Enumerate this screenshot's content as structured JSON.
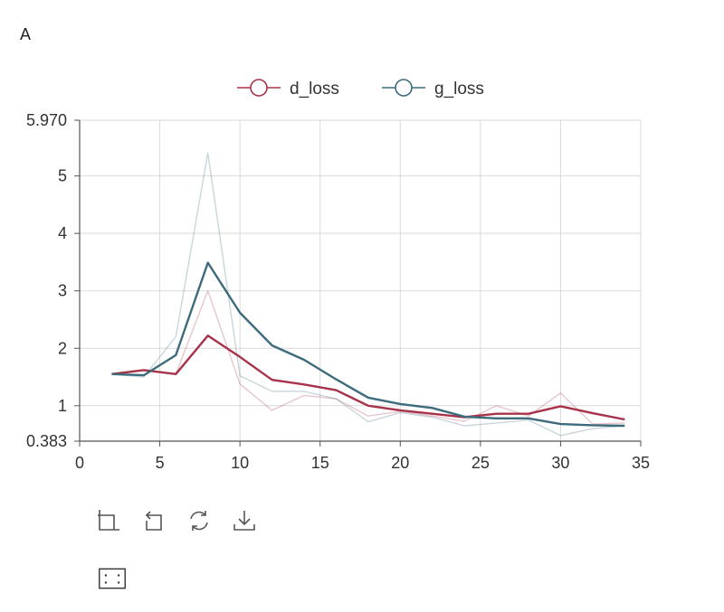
{
  "panel_label": "A",
  "toolbar": {
    "icons": [
      "zoom-area-icon",
      "zoom-reset-icon",
      "restore-icon",
      "download-icon",
      "brush-select-icon"
    ]
  },
  "chart_data": {
    "type": "line",
    "title": "",
    "xlabel": "",
    "ylabel": "",
    "xlim": [
      0,
      35
    ],
    "ylim": [
      0.383,
      5.97
    ],
    "x_ticks": [
      0,
      5,
      10,
      15,
      20,
      25,
      30,
      35
    ],
    "y_ticks": [
      {
        "value": 0.383,
        "label": "0.383"
      },
      {
        "value": 1,
        "label": "1"
      },
      {
        "value": 2,
        "label": "2"
      },
      {
        "value": 3,
        "label": "3"
      },
      {
        "value": 4,
        "label": "4"
      },
      {
        "value": 5,
        "label": "5"
      },
      {
        "value": 5.97,
        "label": "5.970"
      }
    ],
    "grid": true,
    "legend_position": "top-center",
    "series": [
      {
        "name": "d_loss",
        "color": "#a8324a",
        "x": [
          2,
          4,
          6,
          8,
          10,
          12,
          14,
          16,
          18,
          20,
          22,
          24,
          26,
          28,
          30,
          32,
          34
        ],
        "smoothed": [
          1.55,
          1.62,
          1.55,
          2.22,
          1.85,
          1.45,
          1.37,
          1.27,
          1.0,
          0.92,
          0.86,
          0.8,
          0.86,
          0.86,
          0.99,
          0.87,
          0.76
        ],
        "raw": [
          1.55,
          1.62,
          1.55,
          3.0,
          1.38,
          0.92,
          1.18,
          1.12,
          0.82,
          0.9,
          0.82,
          0.73,
          1.0,
          0.82,
          1.22,
          0.68,
          0.7
        ]
      },
      {
        "name": "g_loss",
        "color": "#3d6b7c",
        "x": [
          2,
          4,
          6,
          8,
          10,
          12,
          14,
          16,
          18,
          20,
          22,
          24,
          26,
          28,
          30,
          32,
          34
        ],
        "smoothed": [
          1.55,
          1.53,
          1.88,
          3.49,
          2.62,
          2.05,
          1.8,
          1.46,
          1.14,
          1.03,
          0.96,
          0.81,
          0.78,
          0.78,
          0.68,
          0.66,
          0.65
        ],
        "raw": [
          1.55,
          1.5,
          2.2,
          5.4,
          1.52,
          1.25,
          1.25,
          1.12,
          0.72,
          0.88,
          0.8,
          0.65,
          0.7,
          0.75,
          0.48,
          0.6,
          0.65
        ]
      }
    ]
  }
}
